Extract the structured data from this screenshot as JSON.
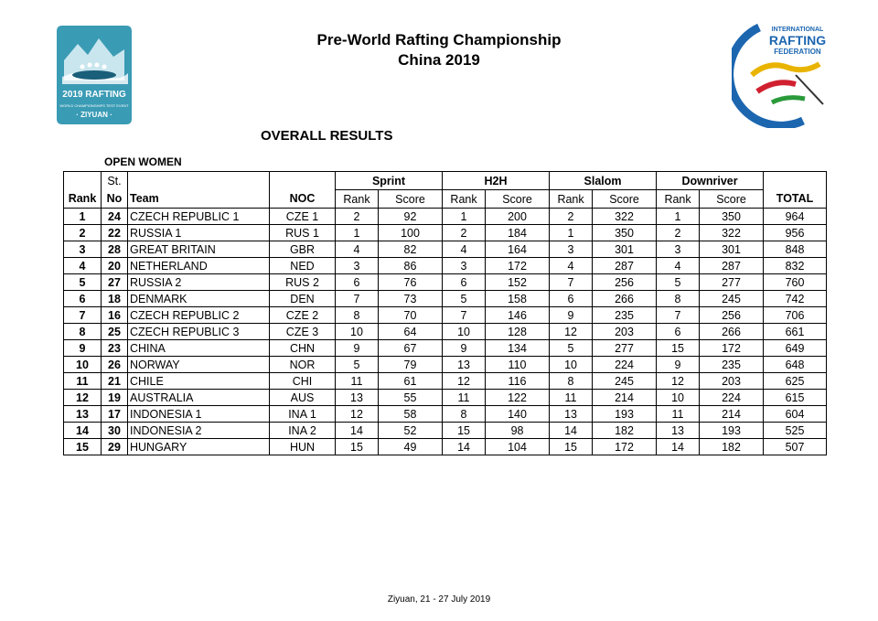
{
  "header": {
    "title_line1": "Pre-World Rafting Championship",
    "title_line2": "China 2019",
    "section": "OVERALL RESULTS",
    "category": "OPEN WOMEN"
  },
  "logos": {
    "left": {
      "line1": "2019 RAFTING",
      "line2": "WORLD CHAMPIONSHIPS TEST EVENT",
      "line3": "· ZIYUAN ·",
      "color": "#3a9bb5"
    },
    "right": {
      "line1": "INTERNATIONAL",
      "line2": "RAFTING",
      "line3": "FEDERATION",
      "color": "#1c66b0"
    }
  },
  "columns": {
    "st": "St.",
    "rank": "Rank",
    "no": "No",
    "team": "Team",
    "noc": "NOC",
    "sprint": "Sprint",
    "h2h": "H2H",
    "slalom": "Slalom",
    "downriver": "Downriver",
    "sub_rank": "Rank",
    "sub_score": "Score",
    "total": "TOTAL"
  },
  "rows": [
    {
      "rank": "1",
      "no": "24",
      "team": "CZECH REPUBLIC 1",
      "noc": "CZE 1",
      "sprint_rank": "2",
      "sprint_score": "92",
      "h2h_rank": "1",
      "h2h_score": "200",
      "slalom_rank": "2",
      "slalom_score": "322",
      "down_rank": "1",
      "down_score": "350",
      "total": "964"
    },
    {
      "rank": "2",
      "no": "22",
      "team": "RUSSIA 1",
      "noc": "RUS 1",
      "sprint_rank": "1",
      "sprint_score": "100",
      "h2h_rank": "2",
      "h2h_score": "184",
      "slalom_rank": "1",
      "slalom_score": "350",
      "down_rank": "2",
      "down_score": "322",
      "total": "956"
    },
    {
      "rank": "3",
      "no": "28",
      "team": "GREAT BRITAIN",
      "noc": "GBR",
      "sprint_rank": "4",
      "sprint_score": "82",
      "h2h_rank": "4",
      "h2h_score": "164",
      "slalom_rank": "3",
      "slalom_score": "301",
      "down_rank": "3",
      "down_score": "301",
      "total": "848"
    },
    {
      "rank": "4",
      "no": "20",
      "team": "NETHERLAND",
      "noc": "NED",
      "sprint_rank": "3",
      "sprint_score": "86",
      "h2h_rank": "3",
      "h2h_score": "172",
      "slalom_rank": "4",
      "slalom_score": "287",
      "down_rank": "4",
      "down_score": "287",
      "total": "832"
    },
    {
      "rank": "5",
      "no": "27",
      "team": "RUSSIA 2",
      "noc": "RUS 2",
      "sprint_rank": "6",
      "sprint_score": "76",
      "h2h_rank": "6",
      "h2h_score": "152",
      "slalom_rank": "7",
      "slalom_score": "256",
      "down_rank": "5",
      "down_score": "277",
      "total": "760"
    },
    {
      "rank": "6",
      "no": "18",
      "team": "DENMARK",
      "noc": "DEN",
      "sprint_rank": "7",
      "sprint_score": "73",
      "h2h_rank": "5",
      "h2h_score": "158",
      "slalom_rank": "6",
      "slalom_score": "266",
      "down_rank": "8",
      "down_score": "245",
      "total": "742"
    },
    {
      "rank": "7",
      "no": "16",
      "team": "CZECH REPUBLIC 2",
      "noc": "CZE 2",
      "sprint_rank": "8",
      "sprint_score": "70",
      "h2h_rank": "7",
      "h2h_score": "146",
      "slalom_rank": "9",
      "slalom_score": "235",
      "down_rank": "7",
      "down_score": "256",
      "total": "706"
    },
    {
      "rank": "8",
      "no": "25",
      "team": "CZECH REPUBLIC 3",
      "noc": "CZE 3",
      "sprint_rank": "10",
      "sprint_score": "64",
      "h2h_rank": "10",
      "h2h_score": "128",
      "slalom_rank": "12",
      "slalom_score": "203",
      "down_rank": "6",
      "down_score": "266",
      "total": "661"
    },
    {
      "rank": "9",
      "no": "23",
      "team": "CHINA",
      "noc": "CHN",
      "sprint_rank": "9",
      "sprint_score": "67",
      "h2h_rank": "9",
      "h2h_score": "134",
      "slalom_rank": "5",
      "slalom_score": "277",
      "down_rank": "15",
      "down_score": "172",
      "total": "649"
    },
    {
      "rank": "10",
      "no": "26",
      "team": "NORWAY",
      "noc": "NOR",
      "sprint_rank": "5",
      "sprint_score": "79",
      "h2h_rank": "13",
      "h2h_score": "110",
      "slalom_rank": "10",
      "slalom_score": "224",
      "down_rank": "9",
      "down_score": "235",
      "total": "648"
    },
    {
      "rank": "11",
      "no": "21",
      "team": "CHILE",
      "noc": "CHI",
      "sprint_rank": "11",
      "sprint_score": "61",
      "h2h_rank": "12",
      "h2h_score": "116",
      "slalom_rank": "8",
      "slalom_score": "245",
      "down_rank": "12",
      "down_score": "203",
      "total": "625"
    },
    {
      "rank": "12",
      "no": "19",
      "team": "AUSTRALIA",
      "noc": "AUS",
      "sprint_rank": "13",
      "sprint_score": "55",
      "h2h_rank": "11",
      "h2h_score": "122",
      "slalom_rank": "11",
      "slalom_score": "214",
      "down_rank": "10",
      "down_score": "224",
      "total": "615"
    },
    {
      "rank": "13",
      "no": "17",
      "team": "INDONESIA 1",
      "noc": "INA 1",
      "sprint_rank": "12",
      "sprint_score": "58",
      "h2h_rank": "8",
      "h2h_score": "140",
      "slalom_rank": "13",
      "slalom_score": "193",
      "down_rank": "11",
      "down_score": "214",
      "total": "604"
    },
    {
      "rank": "14",
      "no": "30",
      "team": "INDONESIA 2",
      "noc": "INA 2",
      "sprint_rank": "14",
      "sprint_score": "52",
      "h2h_rank": "15",
      "h2h_score": "98",
      "slalom_rank": "14",
      "slalom_score": "182",
      "down_rank": "13",
      "down_score": "193",
      "total": "525"
    },
    {
      "rank": "15",
      "no": "29",
      "team": "HUNGARY",
      "noc": "HUN",
      "sprint_rank": "15",
      "sprint_score": "49",
      "h2h_rank": "14",
      "h2h_score": "104",
      "slalom_rank": "15",
      "slalom_score": "172",
      "down_rank": "14",
      "down_score": "182",
      "total": "507"
    }
  ],
  "footer": {
    "text": "Ziyuan, 21 - 27 July 2019"
  }
}
